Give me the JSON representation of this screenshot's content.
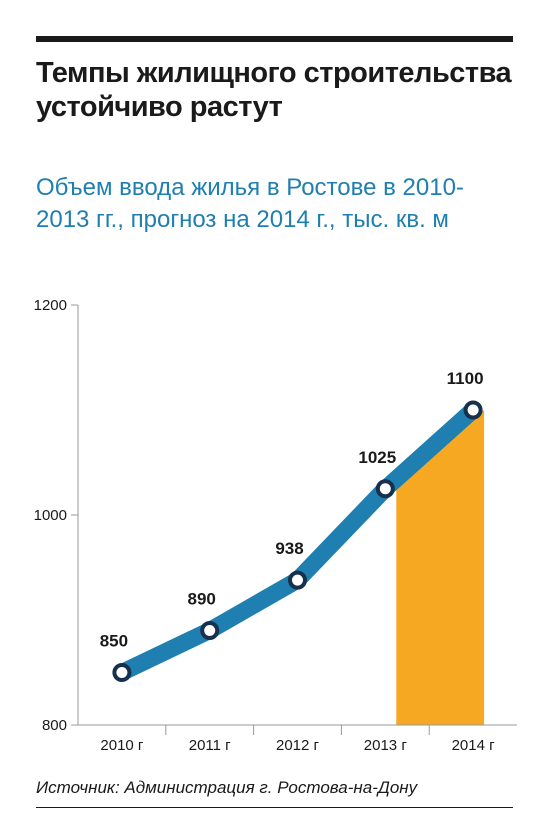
{
  "header": {
    "title": "Темпы жилищного строительства устойчиво растут",
    "subtitle": "Объем ввода жилья в Ростове в 2010-2013 гг., прогноз на 2014 г., тыс. кв. м"
  },
  "chart_data": {
    "type": "line",
    "categories": [
      "2010 г",
      "2011 г",
      "2012 г",
      "2013 г",
      "2014 г"
    ],
    "series": [
      {
        "values": [
          850,
          890,
          938,
          1025,
          1100
        ]
      }
    ],
    "data_labels": [
      "850",
      "890",
      "938",
      "1025",
      "1100"
    ],
    "yticks": [
      800,
      1000,
      1200
    ],
    "ytick_labels": [
      "800",
      "1000",
      "1200"
    ],
    "ylim": [
      800,
      1200
    ],
    "forecast_from_index": 3,
    "grid": false,
    "legend": "none",
    "colors": {
      "line": "#1f7fb0",
      "forecast_area": "#f7a823",
      "axis": "#9a9a9a",
      "marker_fill": "#ffffff",
      "marker_stroke": "#16304d"
    }
  },
  "footer": {
    "source": "Источник: Администрация г. Ростова-на-Дону"
  }
}
